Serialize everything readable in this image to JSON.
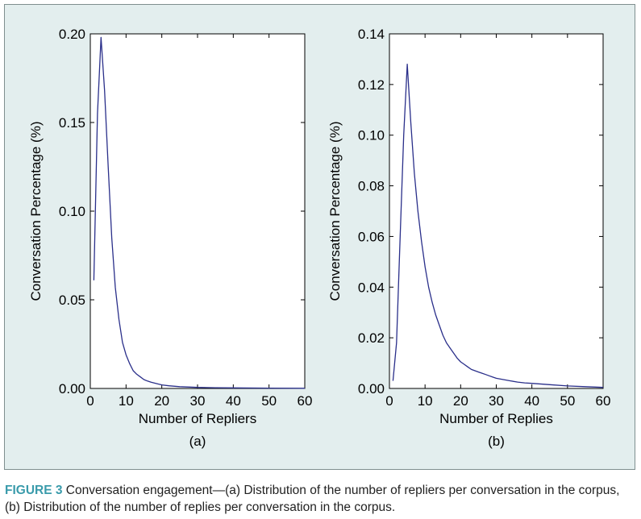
{
  "colors": {
    "panel": "#e3eeee",
    "plot_bg": "#ffffff",
    "axis": "#000000",
    "line": "#2a2f8a",
    "caption_label": "#3a9bab"
  },
  "chart_data": [
    {
      "type": "line",
      "panel_label": "(a)",
      "title": "",
      "xlabel": "Number of Repliers",
      "ylabel": "Conversation Percentage (%)",
      "xlim": [
        0,
        60
      ],
      "ylim": [
        0,
        0.2
      ],
      "xticks": [
        0,
        10,
        20,
        30,
        40,
        50,
        60
      ],
      "yticks": [
        0.0,
        0.05,
        0.1,
        0.15,
        0.2
      ],
      "ytick_labels": [
        "0.00",
        "0.05",
        "0.10",
        "0.15",
        "0.20"
      ],
      "series": [
        {
          "name": "repliers",
          "x": [
            1,
            2,
            3,
            4,
            5,
            6,
            7,
            8,
            9,
            10,
            11,
            12,
            13,
            14,
            15,
            16,
            17,
            18,
            19,
            20,
            22,
            25,
            30,
            35,
            40,
            50,
            60
          ],
          "y": [
            0.061,
            0.155,
            0.198,
            0.168,
            0.125,
            0.085,
            0.057,
            0.039,
            0.026,
            0.019,
            0.014,
            0.01,
            0.008,
            0.0065,
            0.005,
            0.0042,
            0.0035,
            0.003,
            0.0025,
            0.002,
            0.0015,
            0.001,
            0.0006,
            0.0004,
            0.0003,
            0.0002,
            0.0001
          ]
        }
      ]
    },
    {
      "type": "line",
      "panel_label": "(b)",
      "title": "",
      "xlabel": "Number of Replies",
      "ylabel": "Conversation Percentage (%)",
      "xlim": [
        0,
        60
      ],
      "ylim": [
        0,
        0.14
      ],
      "xticks": [
        0,
        10,
        20,
        30,
        40,
        50,
        60
      ],
      "yticks": [
        0.0,
        0.02,
        0.04,
        0.06,
        0.08,
        0.1,
        0.12,
        0.14
      ],
      "ytick_labels": [
        "0.00",
        "0.02",
        "0.04",
        "0.06",
        "0.08",
        "0.10",
        "0.12",
        "0.14"
      ],
      "series": [
        {
          "name": "replies",
          "x": [
            1,
            2,
            3,
            4,
            5,
            6,
            7,
            8,
            9,
            10,
            11,
            12,
            13,
            14,
            15,
            16,
            17,
            18,
            19,
            20,
            21,
            22,
            23,
            24,
            25,
            26,
            27,
            28,
            29,
            30,
            32,
            34,
            36,
            38,
            40,
            45,
            50,
            55,
            60
          ],
          "y": [
            0.003,
            0.018,
            0.06,
            0.1,
            0.128,
            0.105,
            0.085,
            0.07,
            0.058,
            0.048,
            0.04,
            0.034,
            0.029,
            0.025,
            0.021,
            0.018,
            0.016,
            0.014,
            0.012,
            0.0105,
            0.0095,
            0.0085,
            0.0075,
            0.007,
            0.0065,
            0.006,
            0.0055,
            0.005,
            0.0045,
            0.004,
            0.0035,
            0.003,
            0.0025,
            0.0022,
            0.002,
            0.0015,
            0.001,
            0.0007,
            0.0004
          ]
        }
      ]
    }
  ],
  "caption": {
    "label": "FIGURE 3",
    "text": "Conversation engagement—(a) Distribution of the number of repliers per conversation in the corpus, (b) Distribution of the number of replies per conversation in the corpus."
  }
}
